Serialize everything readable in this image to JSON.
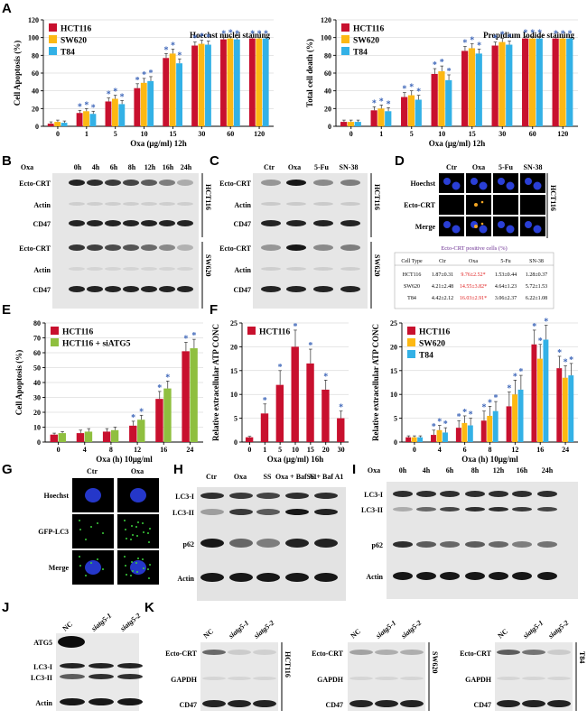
{
  "colors": {
    "hct": "#c8102e",
    "sw": "#fdb813",
    "t84": "#33b1e6",
    "sia": "#8fbf3f",
    "star": "#3b64b8"
  },
  "panels": {
    "A": "A",
    "B": "B",
    "C": "C",
    "D": "D",
    "E": "E",
    "F": "F",
    "G": "G",
    "H": "H",
    "I": "I",
    "J": "J",
    "K": "K"
  },
  "chart_data": [
    {
      "id": "A1",
      "type": "bar",
      "title": "Hoechst nuclei staining",
      "xlabel": "Oxa (μg/ml)  12h",
      "ylabel": "Cell Apoptosis (%)",
      "ylim": [
        0,
        120
      ],
      "yticks": [
        0,
        20,
        40,
        60,
        80,
        100,
        120
      ],
      "categories": [
        "0",
        "1",
        "5",
        "10",
        "15",
        "30",
        "60",
        "120"
      ],
      "series": [
        {
          "name": "HCT116",
          "values": [
            3,
            15,
            28,
            43,
            77,
            91,
            98,
            99
          ]
        },
        {
          "name": "SW620",
          "values": [
            5,
            17,
            31,
            49,
            82,
            93,
            99,
            99
          ]
        },
        {
          "name": "T84",
          "values": [
            4,
            14,
            25,
            51,
            71,
            92,
            98,
            99
          ]
        }
      ],
      "errors": [
        2,
        3,
        4,
        5,
        5,
        4,
        2,
        1
      ],
      "stars": [
        false,
        true,
        true,
        true,
        true,
        true,
        true,
        true
      ]
    },
    {
      "id": "A2",
      "type": "bar",
      "title": "Propidium Iodide staining",
      "xlabel": "Oxa (μg/ml)  12h",
      "ylabel": "Total cell death (%)",
      "ylim": [
        0,
        120
      ],
      "yticks": [
        0,
        20,
        40,
        60,
        80,
        100,
        120
      ],
      "categories": [
        "0",
        "1",
        "5",
        "10",
        "15",
        "30",
        "60",
        "120"
      ],
      "series": [
        {
          "name": "HCT116",
          "values": [
            5,
            18,
            33,
            59,
            85,
            91,
            99,
            99
          ]
        },
        {
          "name": "SW620",
          "values": [
            5,
            20,
            35,
            62,
            88,
            95,
            99,
            99
          ]
        },
        {
          "name": "T84",
          "values": [
            5,
            17,
            30,
            52,
            82,
            92,
            99,
            99
          ]
        }
      ],
      "errors": [
        2,
        4,
        5,
        6,
        5,
        4,
        2,
        1
      ],
      "stars": [
        false,
        true,
        true,
        true,
        true,
        true,
        true,
        true
      ]
    },
    {
      "id": "E",
      "type": "bar",
      "xlabel": "Oxa (h)  10μg/ml",
      "ylabel": "Cell Apoptosis (%)",
      "ylim": [
        0,
        80
      ],
      "yticks": [
        0,
        10,
        20,
        30,
        40,
        50,
        60,
        70,
        80
      ],
      "categories": [
        "0",
        "4",
        "8",
        "12",
        "16",
        "24"
      ],
      "series": [
        {
          "name": "HCT116",
          "values": [
            5,
            6,
            7,
            11,
            29,
            61
          ]
        },
        {
          "name": "HCT116 + siATG5",
          "values": [
            6,
            7,
            8,
            15,
            36,
            63
          ]
        }
      ],
      "errors": [
        1,
        2,
        2,
        3,
        5,
        6
      ],
      "stars": [
        false,
        false,
        false,
        true,
        true,
        true
      ]
    },
    {
      "id": "F1",
      "type": "bar",
      "xlabel": "Oxa (μg/ml)  16h",
      "ylabel": "Relative extracellular ATP CONC",
      "ylim": [
        0,
        25
      ],
      "yticks": [
        0,
        5,
        10,
        15,
        20,
        25
      ],
      "categories": [
        "0",
        "1",
        "5",
        "10",
        "15",
        "20",
        "30"
      ],
      "series": [
        {
          "name": "HCT116",
          "values": [
            1,
            6,
            12,
            20,
            16.5,
            11,
            5
          ]
        }
      ],
      "errors": [
        0.2,
        2,
        3,
        3.5,
        3,
        2,
        1.5
      ],
      "stars": [
        false,
        true,
        true,
        true,
        true,
        true,
        true
      ]
    },
    {
      "id": "F2",
      "type": "bar",
      "xlabel": "Oxa (h)  10μg/ml",
      "ylabel": "Relative extracellular ATP CONC",
      "ylim": [
        0,
        25
      ],
      "yticks": [
        0,
        5,
        10,
        15,
        20,
        25
      ],
      "categories": [
        "0",
        "4",
        "6",
        "8",
        "12",
        "16",
        "24"
      ],
      "series": [
        {
          "name": "HCT116",
          "values": [
            1,
            1.5,
            3,
            4.5,
            7.5,
            20.5,
            15.5
          ]
        },
        {
          "name": "SW620",
          "values": [
            1,
            2.5,
            4,
            5.5,
            10,
            17.5,
            13.5
          ]
        },
        {
          "name": "T84",
          "values": [
            1,
            2,
            3.5,
            6.5,
            11,
            21.5,
            14
          ]
        }
      ],
      "errors": [
        0.3,
        1,
        1.5,
        2,
        3,
        3,
        2.5
      ],
      "stars": [
        false,
        true,
        true,
        true,
        true,
        true,
        true
      ]
    }
  ],
  "blots": {
    "B": {
      "lanes": [
        "Oxa",
        "0h",
        "4h",
        "6h",
        "8h",
        "12h",
        "16h",
        "24h"
      ],
      "rows": [
        "Ecto-CRT",
        "Actin",
        "CD47",
        "Ecto-CRT",
        "Actin",
        "CD47"
      ],
      "cells": [
        "HCT116",
        "SW620"
      ]
    },
    "C": {
      "lanes": [
        "Ctr",
        "Oxa",
        "5-Fu",
        "SN-38"
      ],
      "rows": [
        "Ecto-CRT",
        "Actin",
        "CD47",
        "Ecto-CRT",
        "Actin",
        "CD47"
      ],
      "cells": [
        "HCT116",
        "SW620"
      ]
    },
    "D": {
      "lanes": [
        "Ctr",
        "Oxa",
        "5-Fu",
        "SN-38"
      ],
      "rows": [
        "Hoechst",
        "Ecto-CRT",
        "Merge"
      ],
      "cell": "HCT116",
      "table_title": "Ecto-CRT positive cells (%)",
      "table_head": [
        "Cell Type",
        "Ctr",
        "Oxa",
        "5-Fu",
        "SN-38"
      ],
      "table_rows": [
        [
          "HCT116",
          "1.87±0.31",
          "9.76±2.52*",
          "1.53±0.44",
          "1.28±0.37"
        ],
        [
          "SW620",
          "4.21±2.48",
          "14.55±3.82*",
          "4.64±1.23",
          "5.72±1.53"
        ],
        [
          "T84",
          "4.42±2.12",
          "16.03±2.91*",
          "3.06±2.37",
          "6.22±1.08"
        ]
      ]
    },
    "G": {
      "lanes": [
        "Ctr",
        "Oxa"
      ],
      "rows": [
        "Hoechst",
        "GFP-LC3",
        "Merge"
      ]
    },
    "H": {
      "lanes": [
        "Ctr",
        "Oxa",
        "SS",
        "Oxa + Baf A1",
        "SS + Baf A1"
      ],
      "rows": [
        "LC3-I",
        "LC3-II",
        "p62",
        "Actin"
      ]
    },
    "I": {
      "lanes": [
        "Oxa",
        "0h",
        "4h",
        "6h",
        "8h",
        "12h",
        "16h",
        "24h"
      ],
      "rows": [
        "LC3-I",
        "LC3-II",
        "p62",
        "Actin"
      ]
    },
    "J": {
      "lanes": [
        "NC",
        "siatg5-1",
        "siatg5-2"
      ],
      "rows": [
        "ATG5",
        "LC3-I",
        "LC3-II",
        "Actin"
      ]
    },
    "K": {
      "lanes": [
        "NC",
        "siatg5-1",
        "siatg5-2"
      ],
      "rows": [
        "Ecto-CRT",
        "GAPDH",
        "CD47"
      ],
      "cells": [
        "HCT116",
        "SW620",
        "T84"
      ]
    }
  }
}
